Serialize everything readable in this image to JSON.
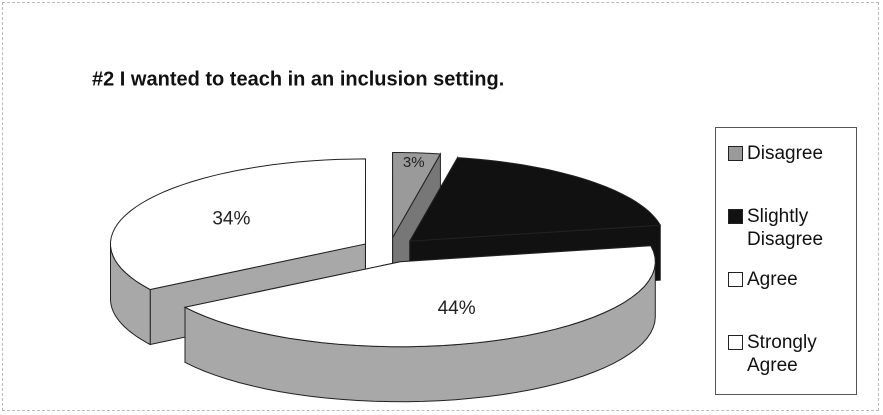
{
  "chart_data": {
    "type": "pie3d",
    "title": "#2 I wanted to teach in an inclusion setting.",
    "categories": [
      "Disagree",
      "Slightly Disagree",
      "Agree",
      "Strongly Agree"
    ],
    "values": [
      3,
      19,
      44,
      34
    ],
    "value_labels": [
      "3%",
      null,
      "44%",
      "34%"
    ],
    "colors": [
      "#9a9a9a",
      "#111111",
      "#ffffff",
      "#ffffff"
    ],
    "wall_colors": [
      "#777777",
      "#111111",
      "#a8a8a8",
      "#a8a8a8"
    ],
    "legend": "right"
  }
}
